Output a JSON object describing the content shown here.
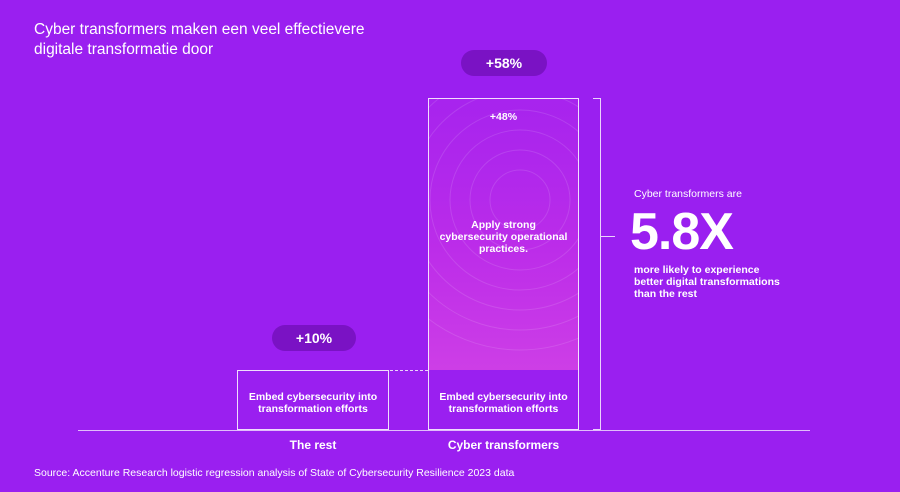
{
  "title": {
    "line1": "Cyber transformers maken een veel effectievere",
    "line2": "digitale transformatie door"
  },
  "chart_data": {
    "type": "bar",
    "categories": [
      "The rest",
      "Cyber transformers"
    ],
    "series": [
      {
        "values": [
          10,
          10
        ]
      },
      {
        "values": [
          0,
          48
        ]
      }
    ],
    "totals": [
      "+10%",
      "+58%"
    ],
    "segment_labels": {
      "base": "Embed cybersecurity into transformation efforts",
      "base_line1": "Embed cybersecurity into",
      "base_line2": "transformation efforts",
      "top": "Apply strong cybersecurity operational practices.",
      "top_line1": "Apply strong",
      "top_line2": "cybersecurity operational",
      "top_line3": "practices.",
      "top_value": "+48%"
    },
    "ylim": [
      0,
      58
    ],
    "grid": false
  },
  "callout": {
    "intro": "Cyber transformers are",
    "multiplier": "5.8X",
    "desc1": "more likely to experience",
    "desc2": "better digital transformations",
    "desc3": "than the rest"
  },
  "source": "Source: Accenture Research logistic regression analysis of State of Cybersecurity Resilience 2023 data",
  "colors": {
    "background": "#9a1ff0",
    "pill": "#7a12c4",
    "bar_fill": "#c22fe8"
  }
}
